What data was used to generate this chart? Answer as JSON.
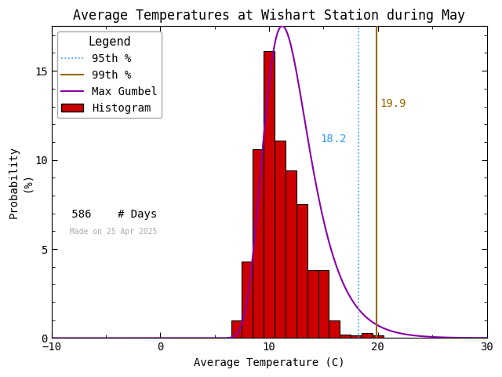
{
  "title": "Average Temperatures at Wishart Station during May",
  "xlabel": "Average Temperature (C)",
  "ylabel": "Probability\n(%)",
  "xlim": [
    -10,
    30
  ],
  "ylim": [
    0,
    17.5
  ],
  "xticks": [
    -10,
    0,
    10,
    20,
    30
  ],
  "yticks": [
    0,
    5,
    10,
    15
  ],
  "background_color": "#ffffff",
  "hist_color": "#cc0000",
  "hist_edge_color": "#000000",
  "gumbel_color": "#8800aa",
  "pct95_color": "#3399ff",
  "pct99_color": "#996600",
  "annotation_95_color": "#3399ff",
  "annotation_99_color": "#996600",
  "pct95_value": 18.2,
  "pct99_value": 19.9,
  "n_days": 586,
  "made_on": "Made on 25 Apr 2025",
  "bin_centers": [
    7,
    8,
    9,
    10,
    11,
    12,
    13,
    14,
    15,
    16,
    17,
    18,
    19,
    20,
    21,
    22,
    23
  ],
  "bin_heights": [
    1.0,
    4.3,
    10.6,
    16.1,
    11.1,
    9.4,
    7.5,
    3.8,
    3.8,
    1.0,
    0.2,
    0.17,
    0.3,
    0.17,
    0.0,
    0.0,
    0.0
  ],
  "gumbel_mu": 11.2,
  "gumbel_beta": 2.1,
  "title_fontsize": 12,
  "axis_fontsize": 10,
  "tick_fontsize": 10,
  "legend_fontsize": 10
}
